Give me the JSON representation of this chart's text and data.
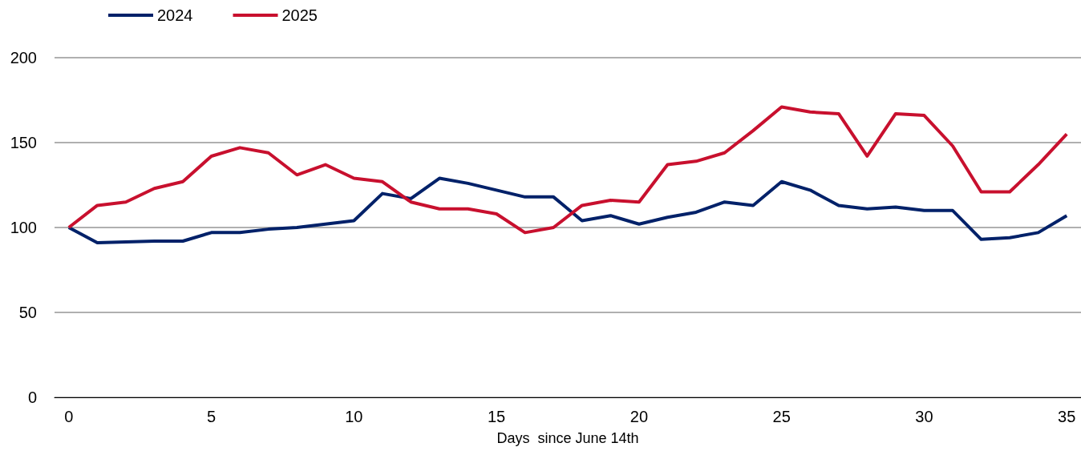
{
  "chart_data": {
    "type": "line",
    "xlabel": "Days  since June 14th",
    "x": [
      0,
      1,
      2,
      3,
      4,
      5,
      6,
      7,
      8,
      9,
      10,
      11,
      12,
      13,
      14,
      15,
      16,
      17,
      18,
      19,
      20,
      21,
      22,
      23,
      24,
      25,
      26,
      27,
      28,
      29,
      30,
      31,
      32,
      33,
      34,
      35
    ],
    "series": [
      {
        "name": "2024",
        "color": "#012169",
        "values": [
          100,
          91,
          91.5,
          92,
          92,
          97,
          97,
          99,
          100,
          102,
          104,
          120,
          117,
          129,
          126,
          122,
          118,
          118,
          104,
          107,
          102,
          106,
          109,
          115,
          113,
          127,
          122,
          113,
          111,
          112,
          110,
          110,
          93,
          94,
          97,
          107
        ]
      },
      {
        "name": "2025",
        "color": "#c8102e",
        "values": [
          100,
          113,
          115,
          123,
          127,
          142,
          147,
          144,
          131,
          137,
          129,
          127,
          115,
          111,
          111,
          108,
          97,
          100,
          113,
          116,
          115,
          137,
          139,
          144,
          157,
          171,
          168,
          167,
          142,
          167,
          166,
          148,
          121,
          121,
          137,
          155
        ]
      }
    ],
    "xlim": [
      -0.5,
      35.5
    ],
    "xticks": [
      0,
      5,
      10,
      15,
      20,
      25,
      30,
      35
    ],
    "ylim": [
      0,
      200
    ],
    "yticks": [
      0,
      50,
      100,
      150,
      200
    ],
    "grid": "y",
    "legend": "top left",
    "marker": "none",
    "line_style": "solid"
  }
}
